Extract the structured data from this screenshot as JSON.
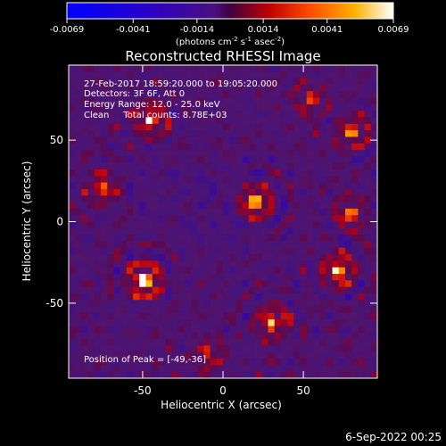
{
  "chart_data": {
    "type": "heatmap",
    "title": "Reconstructed RHESSI Image",
    "xlabel": "Heliocentric X (arcsec)",
    "ylabel": "Heliocentric Y (arcsec)",
    "xlim": [
      -96,
      96
    ],
    "ylim": [
      -96,
      96
    ],
    "xticks": [
      "-50",
      "0",
      "50"
    ],
    "yticks": [
      "50",
      "0",
      "-50"
    ],
    "colorbar": {
      "min": -0.0069,
      "max": 0.0069,
      "ticks": [
        "-0.0069",
        "-0.0041",
        "-0.0014",
        "0.0014",
        "0.0041",
        "0.0069"
      ],
      "units_line": [
        "(photons cm",
        "-2",
        " s",
        "-1",
        " asec",
        "-2",
        ")"
      ]
    },
    "annotations": [
      "27-Feb-2017 18:59:20.000 to 19:05:20.000",
      "Detectors: 3F 6F, Att 0",
      "Energy Range: 12.0 - 25.0 keV",
      "Clean     Total counts: 8.78E+03"
    ],
    "peak_label": "Position of Peak = [-49,-36]",
    "peak": [
      -49,
      -36
    ],
    "bright_sources": [
      {
        "x": -49,
        "y": -36,
        "intensity": 1.0
      },
      {
        "x": 20,
        "y": 12,
        "intensity": 0.85
      },
      {
        "x": -45,
        "y": 62,
        "intensity": 0.7
      },
      {
        "x": 80,
        "y": 55,
        "intensity": 0.65
      },
      {
        "x": 72,
        "y": -30,
        "intensity": 0.75
      },
      {
        "x": 30,
        "y": -62,
        "intensity": 0.7
      },
      {
        "x": -75,
        "y": 20,
        "intensity": 0.5
      },
      {
        "x": 80,
        "y": 5,
        "intensity": 0.55
      },
      {
        "x": -10,
        "y": -80,
        "intensity": 0.45
      },
      {
        "x": 55,
        "y": 75,
        "intensity": 0.4
      }
    ],
    "colormap": "RHESSI blue-purple-red-orange-yellow-white"
  },
  "footer_date": "6-Sep-2022 00:25"
}
